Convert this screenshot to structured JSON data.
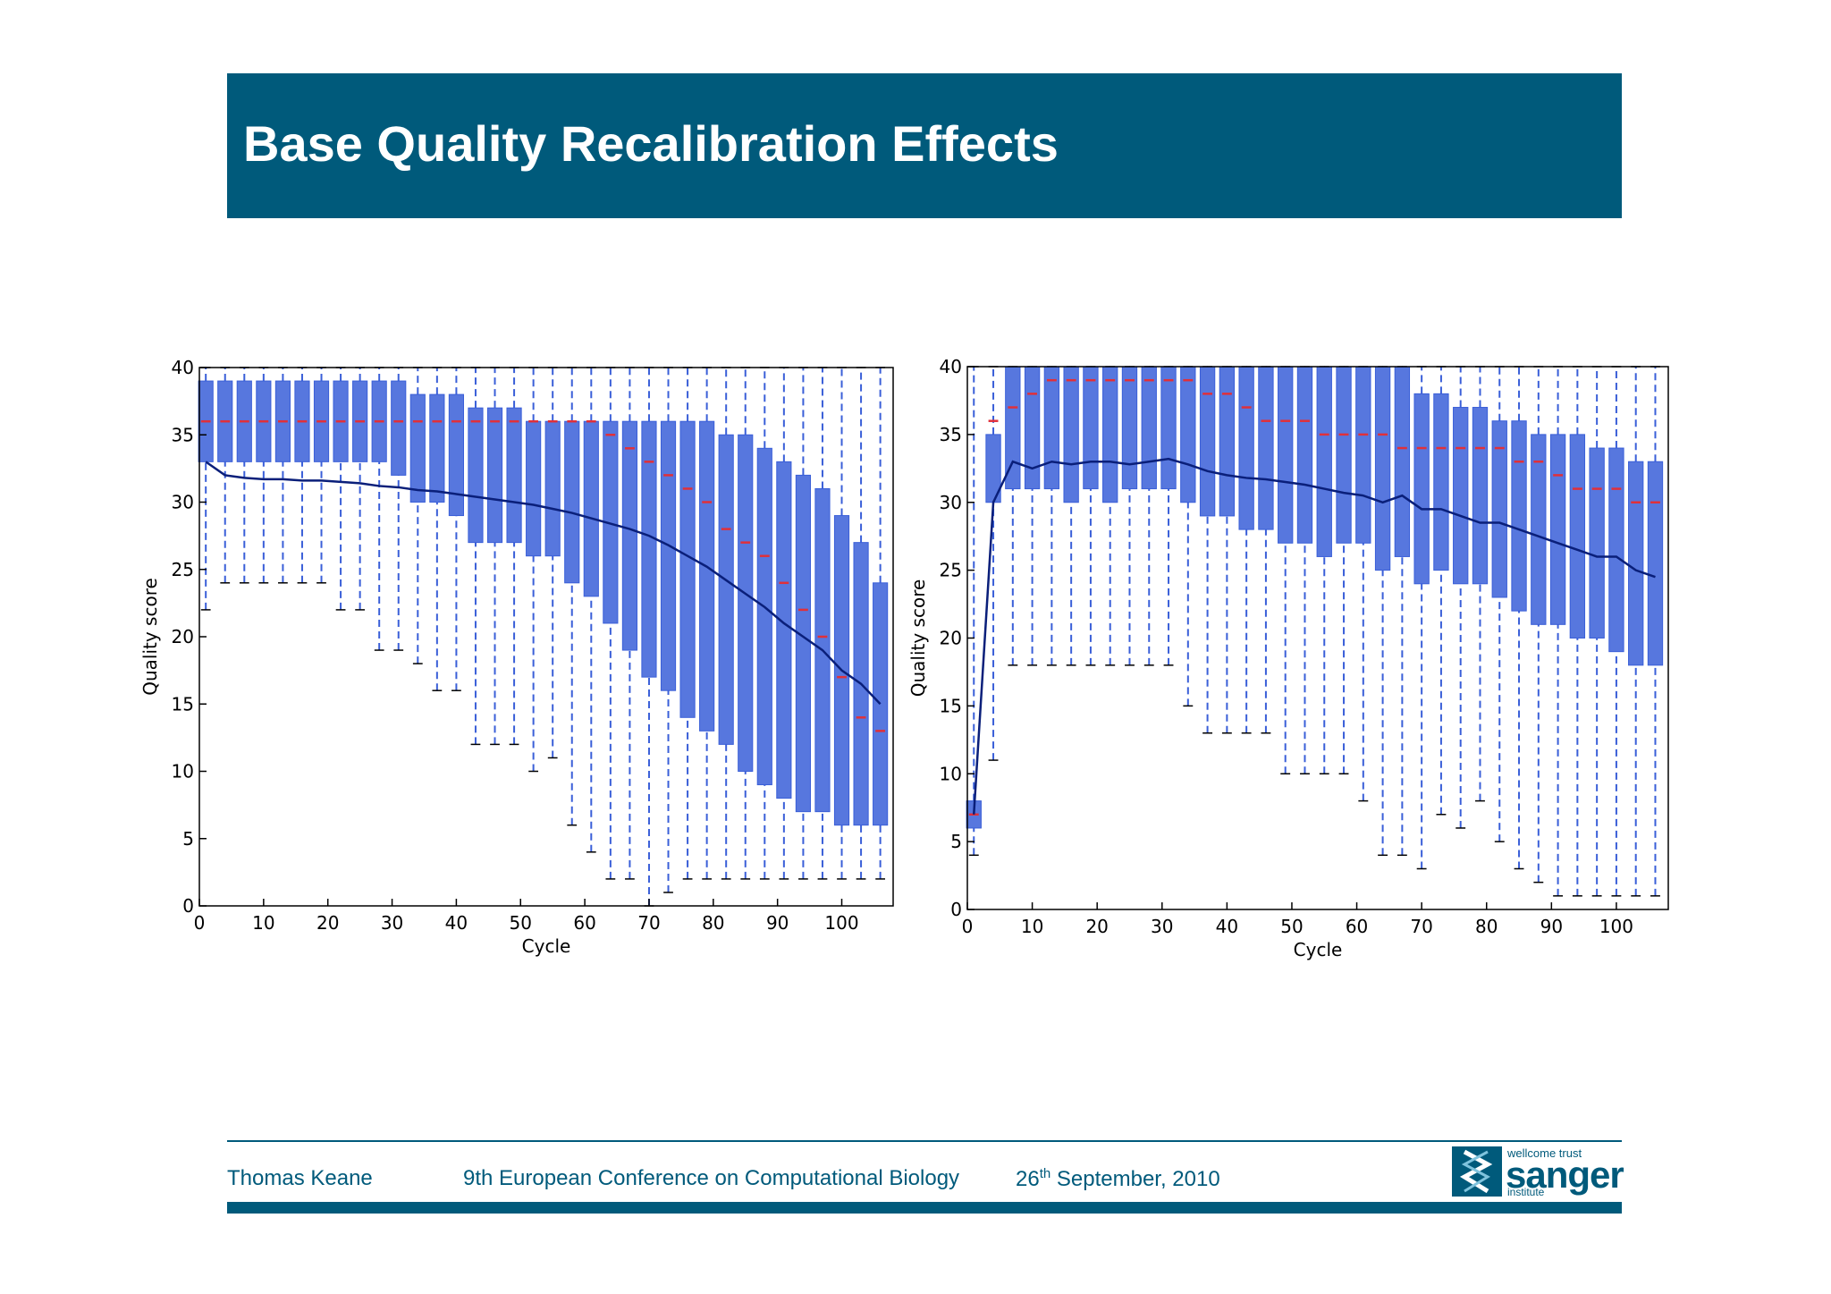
{
  "header": {
    "title": "Base Quality Recalibration Effects"
  },
  "chart_data": [
    {
      "type": "box",
      "x_label": "Cycle",
      "y_label": "Quality score",
      "xlim": [
        0,
        108
      ],
      "ylim": [
        0,
        40
      ],
      "xticks": [
        0,
        10,
        20,
        30,
        40,
        50,
        60,
        70,
        80,
        90,
        100
      ],
      "yticks": [
        0,
        5,
        10,
        15,
        20,
        25,
        30,
        35,
        40
      ],
      "box_color": "#3a5fd8",
      "median_color": "#e0303a",
      "mean_color": "#0a1f7a",
      "x": [
        1,
        4,
        7,
        10,
        13,
        16,
        19,
        22,
        25,
        28,
        31,
        34,
        37,
        40,
        43,
        46,
        49,
        52,
        55,
        58,
        61,
        64,
        67,
        70,
        73,
        76,
        79,
        82,
        85,
        88,
        91,
        94,
        97,
        100,
        103,
        106
      ],
      "whisker_low": [
        22,
        24,
        24,
        24,
        24,
        24,
        24,
        22,
        22,
        19,
        19,
        18,
        16,
        16,
        12,
        12,
        12,
        10,
        11,
        6,
        4,
        2,
        2,
        0,
        1,
        2,
        2,
        2,
        2,
        2,
        2,
        2,
        2,
        2,
        2,
        2
      ],
      "q1": [
        33,
        33,
        33,
        33,
        33,
        33,
        33,
        33,
        33,
        33,
        32,
        30,
        30,
        29,
        27,
        27,
        27,
        26,
        26,
        24,
        23,
        21,
        19,
        17,
        16,
        14,
        13,
        12,
        10,
        9,
        8,
        7,
        7,
        6,
        6,
        6
      ],
      "median": [
        36,
        36,
        36,
        36,
        36,
        36,
        36,
        36,
        36,
        36,
        36,
        36,
        36,
        36,
        36,
        36,
        36,
        36,
        36,
        36,
        36,
        35,
        34,
        33,
        32,
        31,
        30,
        28,
        27,
        26,
        24,
        22,
        20,
        17,
        14,
        13
      ],
      "q3": [
        39,
        39,
        39,
        39,
        39,
        39,
        39,
        39,
        39,
        39,
        39,
        38,
        38,
        38,
        37,
        37,
        37,
        36,
        36,
        36,
        36,
        36,
        36,
        36,
        36,
        36,
        36,
        35,
        35,
        34,
        33,
        32,
        31,
        29,
        27,
        24
      ],
      "whisker_high": [
        40,
        40,
        40,
        40,
        40,
        40,
        40,
        40,
        40,
        40,
        40,
        40,
        40,
        40,
        40,
        40,
        40,
        40,
        40,
        40,
        40,
        40,
        40,
        40,
        40,
        40,
        40,
        40,
        40,
        40,
        40,
        40,
        40,
        40,
        40,
        40
      ],
      "mean": [
        33,
        32,
        31.8,
        31.7,
        31.7,
        31.6,
        31.6,
        31.5,
        31.4,
        31.2,
        31.1,
        30.9,
        30.8,
        30.6,
        30.4,
        30.2,
        30,
        29.8,
        29.5,
        29.2,
        28.8,
        28.4,
        28,
        27.5,
        26.8,
        26,
        25.2,
        24.2,
        23.2,
        22.2,
        21,
        20,
        19,
        17.5,
        16.5,
        15
      ]
    },
    {
      "type": "box",
      "x_label": "Cycle",
      "y_label": "Quality score",
      "xlim": [
        0,
        108
      ],
      "ylim": [
        0,
        40
      ],
      "xticks": [
        0,
        10,
        20,
        30,
        40,
        50,
        60,
        70,
        80,
        90,
        100
      ],
      "yticks": [
        0,
        5,
        10,
        15,
        20,
        25,
        30,
        35,
        40
      ],
      "box_color": "#3a5fd8",
      "median_color": "#e0303a",
      "mean_color": "#0a1f7a",
      "x": [
        1,
        4,
        7,
        10,
        13,
        16,
        19,
        22,
        25,
        28,
        31,
        34,
        37,
        40,
        43,
        46,
        49,
        52,
        55,
        58,
        61,
        64,
        67,
        70,
        73,
        76,
        79,
        82,
        85,
        88,
        91,
        94,
        97,
        100,
        103,
        106
      ],
      "whisker_low": [
        4,
        11,
        18,
        18,
        18,
        18,
        18,
        18,
        18,
        18,
        18,
        15,
        13,
        13,
        13,
        13,
        10,
        10,
        10,
        10,
        8,
        4,
        4,
        3,
        7,
        6,
        8,
        5,
        3,
        2,
        1,
        1,
        1,
        1,
        1,
        1
      ],
      "q1": [
        6,
        30,
        31,
        31,
        31,
        30,
        31,
        30,
        31,
        31,
        31,
        30,
        29,
        29,
        28,
        28,
        27,
        27,
        26,
        27,
        27,
        25,
        26,
        24,
        25,
        24,
        24,
        23,
        22,
        21,
        21,
        20,
        20,
        19,
        18,
        18
      ],
      "median": [
        7,
        36,
        37,
        38,
        39,
        39,
        39,
        39,
        39,
        39,
        39,
        39,
        38,
        38,
        37,
        36,
        36,
        36,
        35,
        35,
        35,
        35,
        34,
        34,
        34,
        34,
        34,
        34,
        33,
        33,
        32,
        31,
        31,
        31,
        30,
        30
      ],
      "q3": [
        8,
        35,
        40,
        40,
        40,
        40,
        40,
        40,
        40,
        40,
        40,
        40,
        40,
        40,
        40,
        40,
        40,
        40,
        40,
        40,
        40,
        40,
        40,
        38,
        38,
        37,
        37,
        36,
        36,
        35,
        35,
        35,
        34,
        34,
        33,
        33
      ],
      "whisker_high": [
        40,
        40,
        40,
        40,
        40,
        40,
        40,
        40,
        40,
        40,
        40,
        40,
        40,
        40,
        40,
        40,
        40,
        40,
        40,
        40,
        40,
        40,
        40,
        40,
        40,
        40,
        40,
        40,
        40,
        40,
        40,
        40,
        40,
        40,
        40,
        40
      ],
      "mean": [
        7,
        30,
        33,
        32.5,
        33,
        32.8,
        33,
        33,
        32.8,
        33,
        33.2,
        32.8,
        32.3,
        32,
        31.8,
        31.7,
        31.5,
        31.3,
        31,
        30.7,
        30.5,
        30,
        30.5,
        29.5,
        29.5,
        29,
        28.5,
        28.5,
        28,
        27.5,
        27,
        26.5,
        26,
        26,
        25,
        24.5
      ]
    }
  ],
  "footer": {
    "author": "Thomas Keane",
    "conference": "9th European Conference on Computational Biology",
    "date_day": "26",
    "date_suffix": "th",
    "date_rest": "September, 2010"
  },
  "logo": {
    "line1": "wellcome trust",
    "line2": "sanger",
    "line3": "institute"
  }
}
